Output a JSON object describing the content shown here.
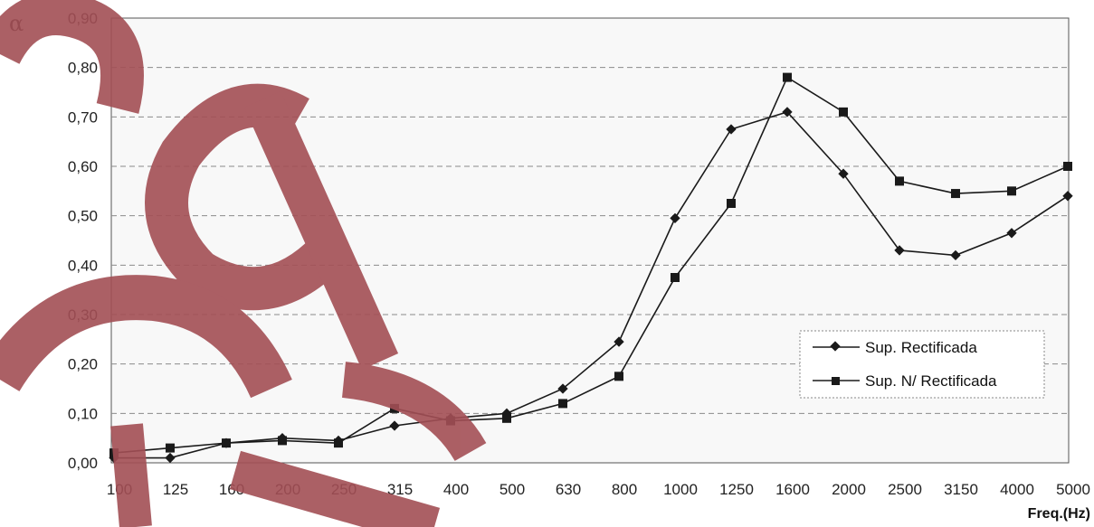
{
  "chart_data": {
    "type": "line",
    "xlabel": "Freq.(Hz)",
    "ylabel": "α",
    "categories": [
      "100",
      "125",
      "160",
      "200",
      "250",
      "315",
      "400",
      "500",
      "630",
      "800",
      "1000",
      "1250",
      "1600",
      "2000",
      "2500",
      "3150",
      "4000",
      "5000"
    ],
    "ylim": [
      0,
      0.9
    ],
    "yticks": [
      "0,00",
      "0,10",
      "0,20",
      "0,30",
      "0,40",
      "0,50",
      "0,60",
      "0,70",
      "0,80",
      "0,90"
    ],
    "grid": "horizontal dashed",
    "legend_position": "right",
    "series": [
      {
        "name": "Sup. Rectificada",
        "marker": "diamond",
        "values": [
          0.01,
          0.01,
          0.04,
          0.05,
          0.045,
          0.075,
          0.09,
          0.1,
          0.15,
          0.245,
          0.495,
          0.675,
          0.71,
          0.585,
          0.43,
          0.42,
          0.465,
          0.54
        ]
      },
      {
        "name": "Sup. N/ Rectificada",
        "marker": "square",
        "values": [
          0.02,
          0.03,
          0.04,
          0.045,
          0.04,
          0.11,
          0.085,
          0.09,
          0.12,
          0.175,
          0.375,
          0.525,
          0.78,
          0.71,
          0.57,
          0.545,
          0.55,
          0.6
        ]
      }
    ]
  },
  "colors": {
    "plot_background": "#f8f8f8",
    "line": "#1a1a1a",
    "grid": "#8a8a8a",
    "watermark": "#a34f55"
  }
}
